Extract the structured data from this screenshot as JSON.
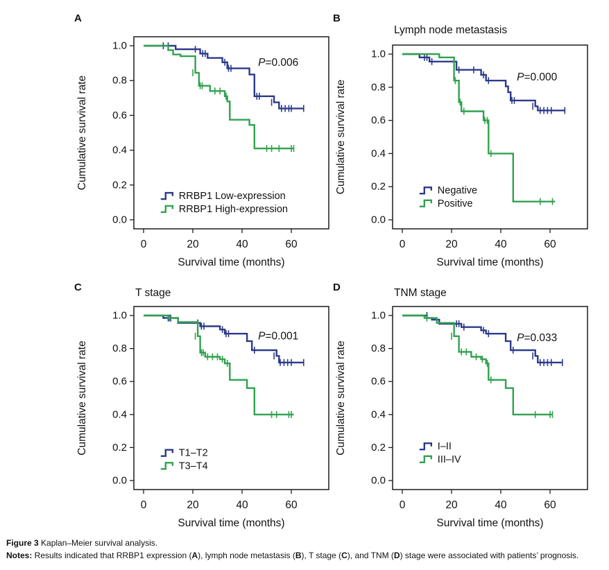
{
  "palette": {
    "blue": "#2c3a8a",
    "green": "#30a24e",
    "axis": "#1c1c1c"
  },
  "chart_data": [
    {
      "type": "line",
      "subtype": "kaplan-meier-step",
      "panel_label": "A",
      "title": "",
      "p_italic": "P",
      "p_rest": "=0.006",
      "p_pos": [
        46.5,
        0.885
      ],
      "xlabel": "Survival time (months)",
      "ylabel": "Cumulative survival rate",
      "xlim": [
        0,
        74
      ],
      "ylim": [
        0,
        1.05
      ],
      "xticks": [
        [
          0,
          "0"
        ],
        [
          20,
          "20"
        ],
        [
          40,
          "40"
        ],
        [
          60,
          "60"
        ]
      ],
      "yticks": [
        [
          0,
          "0.0"
        ],
        [
          0.2,
          "0.2"
        ],
        [
          0.4,
          "0.4"
        ],
        [
          0.6,
          "0.6"
        ],
        [
          0.8,
          "0.8"
        ],
        [
          1,
          "1.0"
        ]
      ],
      "legend": {
        "x": 7,
        "y": 0.135,
        "row_gap": 0.075
      },
      "series": [
        {
          "name": "RRBP1 Low-expression",
          "color": "blue",
          "start": [
            0,
            1.0
          ],
          "steps": [
            [
              13,
              0.98
            ],
            [
              23,
              0.955
            ],
            [
              26,
              0.93
            ],
            [
              32,
              0.905
            ],
            [
              34,
              0.87
            ],
            [
              43,
              0.835
            ],
            [
              45,
              0.71
            ],
            [
              53,
              0.675
            ],
            [
              55,
              0.64
            ]
          ],
          "end_x": 65,
          "censors": [
            [
              8,
              1.0
            ],
            [
              10,
              1.0
            ],
            [
              21,
              0.98
            ],
            [
              24,
              0.955
            ],
            [
              25,
              0.955
            ],
            [
              33,
              0.905
            ],
            [
              34.5,
              0.87
            ],
            [
              35.5,
              0.87
            ],
            [
              46,
              0.71
            ],
            [
              47,
              0.71
            ],
            [
              52,
              0.675
            ],
            [
              56,
              0.64
            ],
            [
              57.5,
              0.64
            ],
            [
              59,
              0.64
            ],
            [
              60,
              0.64
            ],
            [
              65,
              0.64
            ]
          ]
        },
        {
          "name": "RRBP1 High-expression",
          "color": "green",
          "start": [
            0,
            1.0
          ],
          "steps": [
            [
              10,
              0.975
            ],
            [
              12,
              0.95
            ],
            [
              15,
              0.94
            ],
            [
              21,
              0.845
            ],
            [
              22.5,
              0.77
            ],
            [
              27,
              0.74
            ],
            [
              33,
              0.71
            ],
            [
              34,
              0.68
            ],
            [
              35,
              0.575
            ],
            [
              43,
              0.545
            ],
            [
              45,
              0.41
            ]
          ],
          "end_x": 61,
          "censors": [
            [
              20,
              0.845
            ],
            [
              23,
              0.77
            ],
            [
              23.8,
              0.77
            ],
            [
              29,
              0.74
            ],
            [
              31,
              0.74
            ],
            [
              33.5,
              0.71
            ],
            [
              50,
              0.41
            ],
            [
              52,
              0.41
            ],
            [
              55,
              0.41
            ],
            [
              60,
              0.41
            ],
            [
              61,
              0.41
            ]
          ]
        }
      ]
    },
    {
      "type": "line",
      "subtype": "kaplan-meier-step",
      "panel_label": "B",
      "title": "Lymph node metastasis",
      "p_italic": "P",
      "p_rest": "=0.000",
      "p_pos": [
        46.5,
        0.84
      ],
      "xlabel": "Survival time (months)",
      "ylabel": "Cumulative survival rate",
      "xlim": [
        0,
        74
      ],
      "ylim": [
        0,
        1.05
      ],
      "xticks": [
        [
          0,
          "0"
        ],
        [
          20,
          "20"
        ],
        [
          40,
          "40"
        ],
        [
          60,
          "60"
        ]
      ],
      "yticks": [
        [
          0,
          "0.0"
        ],
        [
          0.2,
          "0.2"
        ],
        [
          0.4,
          "0.4"
        ],
        [
          0.6,
          "0.6"
        ],
        [
          0.8,
          "0.8"
        ],
        [
          1,
          "1.0"
        ]
      ],
      "legend": {
        "x": 7,
        "y": 0.175,
        "row_gap": 0.078
      },
      "series": [
        {
          "name": "Negative",
          "color": "blue",
          "start": [
            0,
            1.0
          ],
          "steps": [
            [
              7,
              0.98
            ],
            [
              11,
              0.955
            ],
            [
              22,
              0.905
            ],
            [
              32,
              0.875
            ],
            [
              34,
              0.84
            ],
            [
              42,
              0.805
            ],
            [
              43,
              0.77
            ],
            [
              44,
              0.72
            ],
            [
              54,
              0.685
            ],
            [
              55,
              0.66
            ]
          ],
          "end_x": 66,
          "censors": [
            [
              9,
              0.98
            ],
            [
              10,
              0.98
            ],
            [
              12,
              0.955
            ],
            [
              23,
              0.905
            ],
            [
              29,
              0.905
            ],
            [
              33,
              0.875
            ],
            [
              35,
              0.84
            ],
            [
              44.5,
              0.72
            ],
            [
              45.5,
              0.72
            ],
            [
              53,
              0.685
            ],
            [
              56,
              0.66
            ],
            [
              57.5,
              0.66
            ],
            [
              59,
              0.66
            ],
            [
              60.5,
              0.66
            ],
            [
              66,
              0.66
            ]
          ]
        },
        {
          "name": "Positive",
          "color": "green",
          "start": [
            0,
            1.0
          ],
          "steps": [
            [
              15,
              0.98
            ],
            [
              21,
              0.84
            ],
            [
              23,
              0.71
            ],
            [
              24,
              0.655
            ],
            [
              33,
              0.6
            ],
            [
              35,
              0.4
            ],
            [
              45,
              0.11
            ]
          ],
          "end_x": 62,
          "censors": [
            [
              21.5,
              0.84
            ],
            [
              23.5,
              0.71
            ],
            [
              25,
              0.655
            ],
            [
              33.5,
              0.6
            ],
            [
              34.5,
              0.6
            ],
            [
              36,
              0.4
            ],
            [
              56,
              0.11
            ],
            [
              61,
              0.11
            ]
          ]
        }
      ]
    },
    {
      "type": "line",
      "subtype": "kaplan-meier-step",
      "panel_label": "C",
      "title": "T stage",
      "p_italic": "P",
      "p_rest": "=0.001",
      "p_pos": [
        46.5,
        0.855
      ],
      "xlabel": "Survival time (months)",
      "ylabel": "Cumulative survival rate",
      "xlim": [
        0,
        74
      ],
      "ylim": [
        0,
        1.05
      ],
      "xticks": [
        [
          0,
          "0"
        ],
        [
          20,
          "20"
        ],
        [
          40,
          "40"
        ],
        [
          60,
          "60"
        ]
      ],
      "yticks": [
        [
          0,
          "0.0"
        ],
        [
          0.2,
          "0.2"
        ],
        [
          0.4,
          "0.4"
        ],
        [
          0.6,
          "0.6"
        ],
        [
          0.8,
          "0.8"
        ],
        [
          1,
          "1.0"
        ]
      ],
      "legend": {
        "x": 7,
        "y": 0.165,
        "row_gap": 0.078
      },
      "series": [
        {
          "name": "T1–T2",
          "color": "blue",
          "start": [
            0,
            1.0
          ],
          "steps": [
            [
              8,
              0.985
            ],
            [
              14,
              0.955
            ],
            [
              23,
              0.935
            ],
            [
              31,
              0.915
            ],
            [
              33,
              0.89
            ],
            [
              42,
              0.845
            ],
            [
              44,
              0.79
            ],
            [
              54,
              0.755
            ],
            [
              55,
              0.715
            ]
          ],
          "end_x": 65,
          "censors": [
            [
              10,
              0.985
            ],
            [
              11,
              0.985
            ],
            [
              22,
              0.955
            ],
            [
              23.5,
              0.935
            ],
            [
              24.5,
              0.935
            ],
            [
              32,
              0.915
            ],
            [
              33.5,
              0.89
            ],
            [
              34.5,
              0.89
            ],
            [
              45,
              0.79
            ],
            [
              53,
              0.755
            ],
            [
              55.5,
              0.715
            ],
            [
              57,
              0.715
            ],
            [
              58.5,
              0.715
            ],
            [
              60,
              0.715
            ],
            [
              65,
              0.715
            ]
          ]
        },
        {
          "name": "T3–T4",
          "color": "green",
          "start": [
            0,
            1.0
          ],
          "steps": [
            [
              10,
              0.985
            ],
            [
              14,
              0.96
            ],
            [
              22,
              0.875
            ],
            [
              23,
              0.775
            ],
            [
              25,
              0.75
            ],
            [
              31,
              0.735
            ],
            [
              33,
              0.71
            ],
            [
              35,
              0.61
            ],
            [
              42,
              0.56
            ],
            [
              45,
              0.4
            ]
          ],
          "end_x": 61,
          "censors": [
            [
              10.5,
              0.985
            ],
            [
              21,
              0.875
            ],
            [
              23.5,
              0.775
            ],
            [
              24.2,
              0.775
            ],
            [
              26,
              0.75
            ],
            [
              28,
              0.75
            ],
            [
              30,
              0.75
            ],
            [
              32,
              0.735
            ],
            [
              34,
              0.71
            ],
            [
              52,
              0.4
            ],
            [
              54,
              0.4
            ],
            [
              59,
              0.4
            ],
            [
              60,
              0.4
            ]
          ]
        }
      ]
    },
    {
      "type": "line",
      "subtype": "kaplan-meier-step",
      "panel_label": "D",
      "title": "TNM stage",
      "p_italic": "P",
      "p_rest": "=0.033",
      "p_pos": [
        46.5,
        0.845
      ],
      "xlabel": "Survival time (months)",
      "ylabel": "Cumulative survival rate",
      "xlim": [
        0,
        74
      ],
      "ylim": [
        0,
        1.05
      ],
      "xticks": [
        [
          0,
          "0"
        ],
        [
          20,
          "20"
        ],
        [
          40,
          "40"
        ],
        [
          60,
          "60"
        ]
      ],
      "yticks": [
        [
          0,
          "0.0"
        ],
        [
          0.2,
          "0.2"
        ],
        [
          0.4,
          "0.4"
        ],
        [
          0.6,
          "0.6"
        ],
        [
          0.8,
          "0.8"
        ],
        [
          1,
          "1.0"
        ]
      ],
      "legend": {
        "x": 7,
        "y": 0.205,
        "row_gap": 0.078
      },
      "series": [
        {
          "name": "I–II",
          "color": "blue",
          "start": [
            0,
            1.0
          ],
          "steps": [
            [
              10,
              0.985
            ],
            [
              12,
              0.975
            ],
            [
              15,
              0.95
            ],
            [
              24,
              0.93
            ],
            [
              32,
              0.91
            ],
            [
              34,
              0.89
            ],
            [
              42,
              0.845
            ],
            [
              44,
              0.79
            ],
            [
              54,
              0.755
            ],
            [
              55,
              0.715
            ]
          ],
          "end_x": 65,
          "censors": [
            [
              10,
              1.0
            ],
            [
              22,
              0.95
            ],
            [
              23,
              0.95
            ],
            [
              25,
              0.93
            ],
            [
              33,
              0.91
            ],
            [
              35,
              0.89
            ],
            [
              45,
              0.79
            ],
            [
              53,
              0.755
            ],
            [
              56,
              0.715
            ],
            [
              57.5,
              0.715
            ],
            [
              59,
              0.715
            ],
            [
              60.5,
              0.715
            ],
            [
              65,
              0.715
            ]
          ]
        },
        {
          "name": "III–IV",
          "color": "green",
          "start": [
            0,
            1.0
          ],
          "steps": [
            [
              9,
              0.985
            ],
            [
              14,
              0.955
            ],
            [
              21,
              0.875
            ],
            [
              23,
              0.78
            ],
            [
              28,
              0.75
            ],
            [
              32,
              0.735
            ],
            [
              34,
              0.71
            ],
            [
              35,
              0.61
            ],
            [
              42,
              0.56
            ],
            [
              45,
              0.4
            ]
          ],
          "end_x": 61,
          "censors": [
            [
              10,
              0.985
            ],
            [
              20,
              0.875
            ],
            [
              24,
              0.78
            ],
            [
              26,
              0.78
            ],
            [
              30,
              0.75
            ],
            [
              32.5,
              0.735
            ],
            [
              34.5,
              0.71
            ],
            [
              36,
              0.61
            ],
            [
              54,
              0.4
            ],
            [
              60,
              0.4
            ],
            [
              61,
              0.4
            ]
          ]
        }
      ]
    }
  ],
  "caption": {
    "lines": [
      [
        {
          "text": "Figure 3 ",
          "bold": true
        },
        {
          "text": "Kaplan–Meier survival analysis.",
          "bold": false
        }
      ],
      [
        {
          "text": "Notes: ",
          "bold": true
        },
        {
          "text": "Results indicated that RRBP1 expression (",
          "bold": false
        },
        {
          "text": "A",
          "bold": true
        },
        {
          "text": "), lymph node metastasis (",
          "bold": false
        },
        {
          "text": "B",
          "bold": true
        },
        {
          "text": "), T stage (",
          "bold": false
        },
        {
          "text": "C",
          "bold": true
        },
        {
          "text": "), and TNM (",
          "bold": false
        },
        {
          "text": "D",
          "bold": true
        },
        {
          "text": ") stage were associated with patients’ prognosis.",
          "bold": false
        }
      ]
    ]
  }
}
